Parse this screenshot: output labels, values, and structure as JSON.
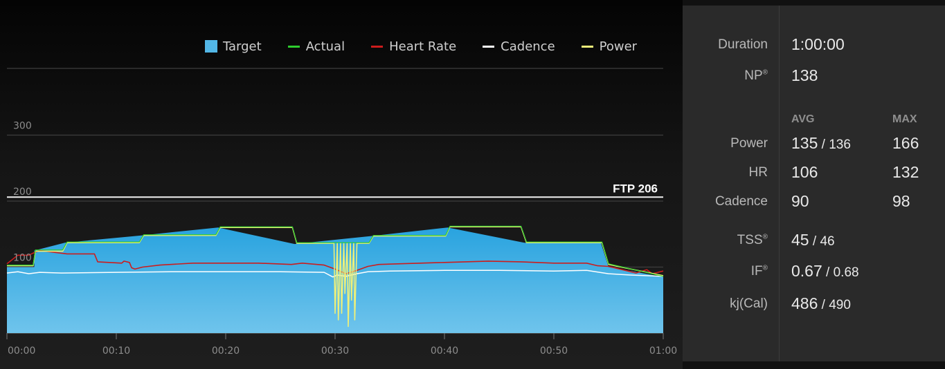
{
  "chart_data": {
    "type": "area",
    "legend": {
      "placement": "top",
      "items": [
        {
          "label": "Target",
          "color": "#52b6e6",
          "kind": "box"
        },
        {
          "label": "Actual",
          "color": "#2ecc2e",
          "kind": "line"
        },
        {
          "label": "Heart Rate",
          "color": "#cc1c1c",
          "kind": "line"
        },
        {
          "label": "Cadence",
          "color": "#ffffff",
          "kind": "line"
        },
        {
          "label": "Power",
          "color": "#eef07a",
          "kind": "line"
        }
      ]
    },
    "x_ticks": [
      "00:00",
      "00:10",
      "00:20",
      "00:30",
      "00:40",
      "00:50",
      "01:00"
    ],
    "x_range_min": [
      0,
      60
    ],
    "y_ticks": [
      100,
      200,
      300
    ],
    "y_range": [
      0,
      400
    ],
    "ftp": {
      "label": "FTP 206",
      "value": 206
    },
    "target": {
      "x_min": [
        0,
        2.5,
        2.5,
        5.3,
        12.3,
        19.3,
        26.3,
        33.3,
        40.3,
        47.3,
        54.3,
        55.0,
        60
      ],
      "y": [
        100,
        100,
        125,
        137,
        148,
        160,
        135,
        147,
        160,
        137,
        137,
        100,
        85
      ]
    },
    "power": {
      "x_min": [
        0,
        2.4,
        2.6,
        5.1,
        5.5,
        12.1,
        12.5,
        19.1,
        19.5,
        26.1,
        26.5,
        29.9,
        30.0,
        30.2,
        30.3,
        30.5,
        30.6,
        30.8,
        30.9,
        31.1,
        31.2,
        31.4,
        31.5,
        31.7,
        31.8,
        32.0,
        32.1,
        33.1,
        33.5,
        40.1,
        40.5,
        47.0,
        47.5,
        54.2,
        54.4,
        55.0,
        60
      ],
      "y": [
        102,
        102,
        124,
        124,
        137,
        137,
        148,
        148,
        160,
        160,
        136,
        136,
        30,
        136,
        20,
        136,
        30,
        136,
        60,
        136,
        10,
        136,
        50,
        136,
        20,
        136,
        136,
        136,
        147,
        147,
        161,
        161,
        137,
        137,
        137,
        104,
        87
      ]
    },
    "actual": {
      "x_min": [
        0,
        2.4,
        2.6,
        5.1,
        5.5,
        12.1,
        12.5,
        19.1,
        19.5,
        26.1,
        26.5,
        33.1,
        33.5,
        40.1,
        40.5,
        47.0,
        47.5,
        54.2,
        54.4,
        55.0,
        60
      ],
      "y": [
        103,
        103,
        126,
        126,
        138,
        138,
        149,
        149,
        161,
        161,
        137,
        137,
        148,
        148,
        162,
        162,
        138,
        138,
        138,
        105,
        86
      ]
    },
    "heart_rate": {
      "x_min": [
        0,
        1.0,
        2.0,
        2.5,
        3.0,
        5.5,
        8.0,
        8.3,
        10.5,
        10.7,
        11.2,
        11.4,
        11.7,
        12.4,
        14.0,
        17.0,
        20.0,
        23.0,
        26.0,
        27.0,
        29.0,
        30.0,
        31.0,
        32.0,
        33.0,
        34.0,
        36.0,
        40.0,
        44.0,
        47.0,
        50.0,
        53.0,
        54.0,
        55.0,
        57.5,
        58.5,
        59.0,
        60
      ],
      "y": [
        105,
        118,
        118,
        122,
        125,
        120,
        120,
        108,
        106,
        109,
        107,
        99,
        97,
        100,
        103,
        106,
        106,
        106,
        104,
        106,
        103,
        97,
        90,
        95,
        101,
        104,
        105,
        107,
        109,
        108,
        106,
        106,
        102,
        101,
        91,
        96,
        90,
        94
      ]
    },
    "cadence": {
      "x_min": [
        0,
        1.0,
        2.0,
        3.0,
        5.0,
        10.0,
        15.0,
        20.0,
        25.0,
        29.0,
        29.8,
        30.2,
        31.0,
        32.0,
        33.0,
        35.0,
        40.0,
        45.0,
        50.0,
        53.0,
        55.0,
        57.0,
        60
      ],
      "y": [
        91,
        93,
        90,
        92,
        91,
        92,
        93,
        93,
        93,
        92,
        85,
        88,
        86,
        90,
        93,
        94,
        95,
        95,
        94,
        95,
        90,
        88,
        86
      ]
    }
  },
  "stats": {
    "duration": {
      "label": "Duration",
      "value": "1:00:00"
    },
    "np": {
      "label": "NP",
      "mark": "®",
      "value": "138"
    },
    "columns": {
      "avg": "AVG",
      "max": "MAX"
    },
    "power": {
      "label": "Power",
      "avg": "135",
      "sep": " / ",
      "sub": "136",
      "max": "166"
    },
    "hr": {
      "label": "HR",
      "avg": "106",
      "max": "132"
    },
    "cadence": {
      "label": "Cadence",
      "avg": "90",
      "max": "98"
    },
    "tss": {
      "label": "TSS",
      "mark": "®",
      "value": "45",
      "sep": " / ",
      "sub": "46"
    },
    "if": {
      "label": "IF",
      "mark": "®",
      "value": "0.67",
      "sep": " / ",
      "sub": "0.68"
    },
    "kj": {
      "label": "kj(Cal)",
      "value": "486",
      "sep": " / ",
      "sub": "490"
    }
  }
}
